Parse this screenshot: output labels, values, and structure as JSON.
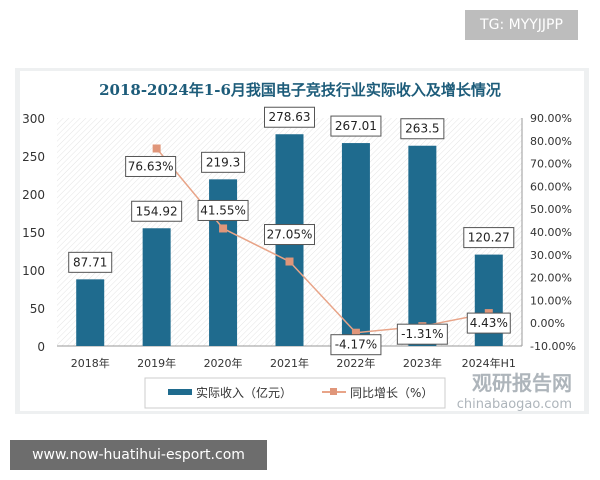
{
  "watermark_top": "TG: MYYJJPP",
  "watermark_bottom": "www.now-huatihui-esport.com",
  "logo_text": "观研报告网",
  "logo_url": "chinabaogao.com",
  "chart_data": {
    "type": "bar+line",
    "title": "2018-2024年1-6月我国电子竞技行业实际收入及增长情况",
    "categories": [
      "2018年",
      "2019年",
      "2020年",
      "2021年",
      "2022年",
      "2023年",
      "2024年H1"
    ],
    "series": [
      {
        "name": "实际收入（亿元）",
        "type": "bar",
        "axis": "left",
        "color": "#1f6b8e",
        "values": [
          87.71,
          154.92,
          219.3,
          278.63,
          267.01,
          263.5,
          120.27
        ],
        "labels": [
          "87.71",
          "154.92",
          "219.3",
          "278.63",
          "267.01",
          "263.5",
          "120.27"
        ]
      },
      {
        "name": "同比增长（%）",
        "type": "line",
        "axis": "right",
        "color": "#e8a488",
        "values": [
          null,
          76.63,
          41.55,
          27.05,
          -4.17,
          -1.31,
          4.43
        ],
        "labels": [
          "",
          "76.63%",
          "41.55%",
          "27.05%",
          "-4.17%",
          "-1.31%",
          "4.43%"
        ]
      }
    ],
    "yleft": {
      "min": 0,
      "max": 300,
      "ticks": [
        "0",
        "50",
        "100",
        "150",
        "200",
        "250",
        "300"
      ]
    },
    "yright": {
      "min": -10,
      "max": 90,
      "ticks": [
        "-10.00%",
        "0.00%",
        "10.00%",
        "20.00%",
        "30.00%",
        "40.00%",
        "50.00%",
        "60.00%",
        "70.00%",
        "80.00%",
        "90.00%"
      ]
    },
    "legend": "bottom"
  }
}
